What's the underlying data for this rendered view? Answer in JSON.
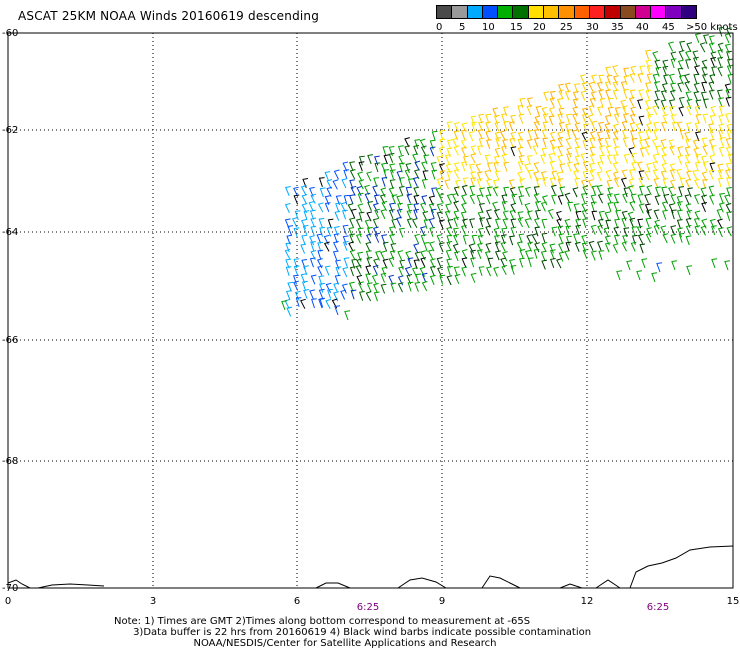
{
  "title": "ASCAT 25KM NOAA Winds 20160619 descending",
  "legend": {
    "labels": [
      "0",
      "5",
      "10",
      "15",
      "20",
      "25",
      "30",
      "35",
      "40",
      "45",
      ">50 knots"
    ],
    "colors": [
      "#4a4a4a",
      "#9a9a9a",
      "#00aaff",
      "#0050ff",
      "#00b000",
      "#007000",
      "#ffe000",
      "#ffc000",
      "#ff9000",
      "#ff6000",
      "#ff2020",
      "#c00000",
      "#8a4a20",
      "#d00090",
      "#ff00ff",
      "#8000c0",
      "#300080"
    ]
  },
  "axes": {
    "x_ticks": [
      "0",
      "3",
      "6",
      "9",
      "12",
      "15"
    ],
    "y_ticks": [
      "-60",
      "-62",
      "-64",
      "-66",
      "-68",
      "-70"
    ],
    "times": [
      "6:25",
      "6:25"
    ]
  },
  "notes": [
    "Note: 1) Times are GMT 2)Times along bottom correspond to measurement at -65S",
    "      3)Data buffer is 22 hrs from 20160619 4) Black wind barbs indicate possible contamination",
    "                         NOAA/NESDIS/Center for Satellite Applications and Research"
  ]
}
